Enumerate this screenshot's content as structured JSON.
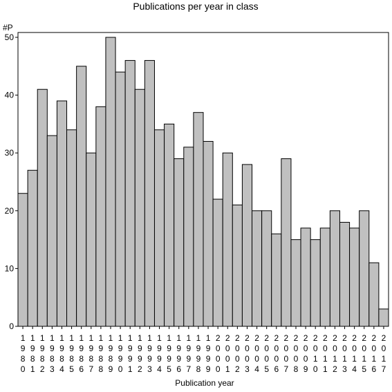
{
  "chart_data": {
    "type": "bar",
    "title": "Publications per year in class",
    "xlabel": "Publication year",
    "ylabel": "#P",
    "ylim": [
      0,
      50
    ],
    "yticks": [
      0,
      10,
      20,
      30,
      40,
      50
    ],
    "grid": false,
    "legend": "none",
    "bar_color": "#c0c0c0",
    "categories": [
      "1980",
      "1981",
      "1982",
      "1983",
      "1984",
      "1985",
      "1986",
      "1987",
      "1988",
      "1989",
      "1990",
      "1991",
      "1992",
      "1993",
      "1994",
      "1995",
      "1996",
      "1997",
      "1998",
      "1999",
      "2000",
      "2001",
      "2002",
      "2003",
      "2004",
      "2005",
      "2006",
      "2007",
      "2008",
      "2009",
      "2010",
      "2011",
      "2012",
      "2013",
      "2014",
      "2015",
      "2016",
      "2017"
    ],
    "values": [
      23,
      27,
      41,
      33,
      39,
      34,
      45,
      30,
      38,
      50,
      44,
      46,
      41,
      46,
      34,
      35,
      29,
      31,
      37,
      32,
      22,
      30,
      21,
      28,
      20,
      20,
      16,
      29,
      15,
      17,
      15,
      17,
      20,
      18,
      17,
      20,
      11,
      3
    ]
  }
}
